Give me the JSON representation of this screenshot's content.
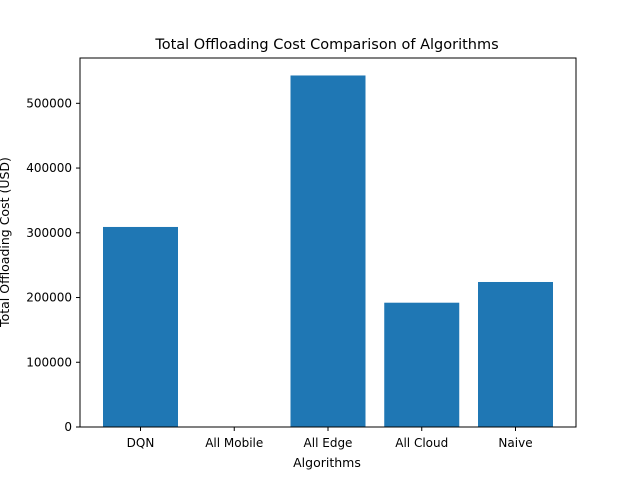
{
  "chart_data": {
    "type": "bar",
    "title": "Total Offloading Cost Comparison of Algorithms",
    "xlabel": "Algorithms",
    "ylabel": "Total Offloading Cost (USD)",
    "categories": [
      "DQN",
      "All Mobile",
      "All Edge",
      "All Cloud",
      "Naive"
    ],
    "values": [
      309000,
      0,
      543000,
      192000,
      224000
    ],
    "ylim": [
      0,
      570000
    ],
    "yticks": [
      0,
      100000,
      200000,
      300000,
      400000,
      500000
    ],
    "ytick_labels": [
      "0",
      "100000",
      "200000",
      "300000",
      "400000",
      "500000"
    ],
    "grid": false,
    "legend": "none",
    "bar_color": "#1f77b4"
  }
}
